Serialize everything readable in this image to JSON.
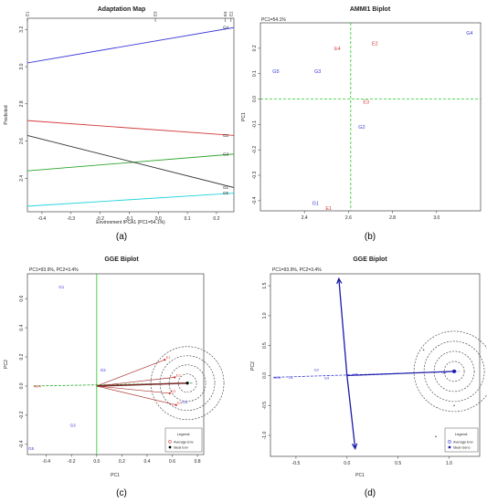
{
  "chart_data": [
    {
      "id": "a",
      "type": "line",
      "title": "Adaptation Map",
      "xlabel": "Environment IPCA1 (PC1=54.1%)",
      "ylabel": "Predicted",
      "xlim": [
        -0.45,
        0.26
      ],
      "ylim": [
        2.22,
        3.26
      ],
      "xticks": [
        -0.4,
        -0.3,
        -0.2,
        -0.1,
        0.0,
        0.1,
        0.2
      ],
      "xtick_labels": [
        "-0.4",
        "-0.3",
        "-0.2",
        "-0.1",
        "0.0",
        "0.1",
        "0.2"
      ],
      "yticks": [
        2.4,
        2.6,
        2.8,
        3.0,
        3.2
      ],
      "ytick_labels": [
        "2.4",
        "2.6",
        "2.8",
        "3.0",
        "3.2"
      ],
      "env_markers": [
        {
          "label": "E1",
          "x": -0.45
        },
        {
          "label": "E3",
          "x": -0.01
        },
        {
          "label": "E4",
          "x": 0.23
        },
        {
          "label": "E2",
          "x": 0.25
        }
      ],
      "series": [
        {
          "name": "G4",
          "color": "#3a3ad6",
          "x": [
            -0.45,
            0.26
          ],
          "y": [
            3.02,
            3.21
          ]
        },
        {
          "name": "G2",
          "color": "#d63a3a",
          "x": [
            -0.45,
            0.26
          ],
          "y": [
            2.71,
            2.63
          ]
        },
        {
          "name": "G3",
          "color": "#2ca52c",
          "x": [
            -0.45,
            0.26
          ],
          "y": [
            2.44,
            2.53
          ]
        },
        {
          "name": "G1",
          "color": "#333333",
          "x": [
            -0.45,
            0.26
          ],
          "y": [
            2.63,
            2.35
          ]
        },
        {
          "name": "G5",
          "color": "#22d3e0",
          "x": [
            -0.45,
            0.26
          ],
          "y": [
            2.25,
            2.32
          ]
        }
      ],
      "caption": "(a)"
    },
    {
      "id": "b",
      "type": "scatter",
      "title": "AMMI1 Biplot",
      "subtitle": "PC1=54.1%",
      "xlabel": "",
      "ylabel": "PC1",
      "xlim": [
        2.2,
        3.2
      ],
      "ylim": [
        -0.44,
        0.3
      ],
      "xticks": [
        2.4,
        2.6,
        2.8,
        3.0
      ],
      "xtick_labels": [
        "2.4",
        "2.6",
        "2.8",
        "3.0"
      ],
      "yticks": [
        -0.4,
        -0.3,
        -0.2,
        -0.1,
        0.0,
        0.1,
        0.2
      ],
      "ytick_labels": [
        "-0.4",
        "-0.3",
        "-0.2",
        "-0.1",
        "0.0",
        "0.1",
        "0.2"
      ],
      "reference_lines": {
        "x": 2.61,
        "y": 0.0,
        "color": "#22cc22"
      },
      "genotypes": [
        {
          "label": "G4",
          "x": 3.15,
          "y": 0.26
        },
        {
          "label": "G5",
          "x": 2.27,
          "y": 0.11
        },
        {
          "label": "G3",
          "x": 2.46,
          "y": 0.11
        },
        {
          "label": "G2",
          "x": 2.66,
          "y": -0.11
        },
        {
          "label": "G1",
          "x": 2.45,
          "y": -0.41
        }
      ],
      "environments": [
        {
          "label": "E2",
          "x": 2.72,
          "y": 0.22
        },
        {
          "label": "E4",
          "x": 2.55,
          "y": 0.2
        },
        {
          "label": "E3",
          "x": 2.68,
          "y": -0.01
        },
        {
          "label": "E1",
          "x": 2.51,
          "y": -0.43
        }
      ],
      "caption": "(b)"
    },
    {
      "id": "c",
      "type": "scatter",
      "title": "GGE Biplot",
      "subtitle": "PC1=93.9%, PC2=3.4%",
      "xlabel": "PC1",
      "ylabel": "PC2",
      "xlim": [
        -0.55,
        0.85
      ],
      "ylim": [
        -0.47,
        0.77
      ],
      "xticks": [
        -0.4,
        -0.2,
        0.0,
        0.2,
        0.4,
        0.6,
        0.8
      ],
      "xtick_labels": [
        "-0.4",
        "-0.2",
        "0.0",
        "0.2",
        "0.4",
        "0.6",
        "0.8"
      ],
      "yticks": [
        -0.4,
        -0.2,
        0.0,
        0.2,
        0.4,
        0.6
      ],
      "ytick_labels": [
        "-0.4",
        "-0.2",
        "0.0",
        "0.2",
        "0.4",
        "0.6"
      ],
      "reference_line_x": 0.0,
      "genotypes": [
        {
          "label": "G1",
          "x": -0.28,
          "y": 0.68
        },
        {
          "label": "G2",
          "x": 0.05,
          "y": 0.11
        },
        {
          "label": "G3",
          "x": -0.19,
          "y": -0.27
        },
        {
          "label": "G4",
          "x": 0.7,
          "y": -0.11
        },
        {
          "label": "G5",
          "x": -0.52,
          "y": -0.43
        }
      ],
      "environments": [
        {
          "label": "E1",
          "x": 0.54,
          "y": 0.18
        },
        {
          "label": "E2",
          "x": 0.62,
          "y": 0.06
        },
        {
          "label": "E3",
          "x": 0.58,
          "y": -0.05
        },
        {
          "label": "E4",
          "x": 0.63,
          "y": -0.13
        }
      ],
      "aec": {
        "start": [
          -0.5,
          0.0
        ],
        "end": [
          0.76,
          0.02
        ],
        "label": "AEA"
      },
      "ideal": {
        "x": 0.72,
        "y": 0.02,
        "rings": 4
      },
      "legend": [
        "Average Env",
        "Ideal Env"
      ],
      "legend_title": "Legend:",
      "caption": "(c)"
    },
    {
      "id": "d",
      "type": "scatter",
      "title": "GGE Biplot",
      "subtitle": "PC1=93.9%, PC2=3.4%",
      "xlabel": "PC1",
      "ylabel": "PC2",
      "xlim": [
        -0.75,
        1.3
      ],
      "ylim": [
        -1.35,
        1.7
      ],
      "xticks": [
        -0.5,
        0.0,
        0.5,
        1.0
      ],
      "xtick_labels": [
        "-0.5",
        "0.0",
        "0.5",
        "1.0"
      ],
      "yticks": [
        -1.0,
        -0.5,
        0.0,
        0.5,
        1.0,
        1.5
      ],
      "ytick_labels": [
        "-1.0",
        "-0.5",
        "0.0",
        "0.5",
        "1.0",
        "1.5"
      ],
      "genotypes": [
        {
          "label": "G1",
          "x": -0.55,
          "y": -0.03
        },
        {
          "label": "G2",
          "x": -0.3,
          "y": 0.1
        },
        {
          "label": "G3",
          "x": -0.2,
          "y": -0.04
        },
        {
          "label": "G4",
          "x": 0.95,
          "y": 0.05
        },
        {
          "label": "G5",
          "x": 0.08,
          "y": 0.02
        }
      ],
      "environment_points": [
        {
          "x": 0.75,
          "y": 0.43
        },
        {
          "x": 1.05,
          "y": -0.5
        },
        {
          "x": 0.87,
          "y": -1.02
        }
      ],
      "aec": {
        "start": [
          -0.72,
          -0.03
        ],
        "end": [
          1.1,
          0.07
        ],
        "label": "AEA"
      },
      "ordinate": {
        "top": [
          -0.08,
          1.62
        ],
        "bottom": [
          0.08,
          -1.22
        ]
      },
      "ideal": {
        "x": 1.05,
        "y": 0.07,
        "rings": 4
      },
      "legend": [
        "Average Env",
        "Ideal Geno"
      ],
      "legend_title": "Legend:",
      "caption": "(d)"
    }
  ]
}
